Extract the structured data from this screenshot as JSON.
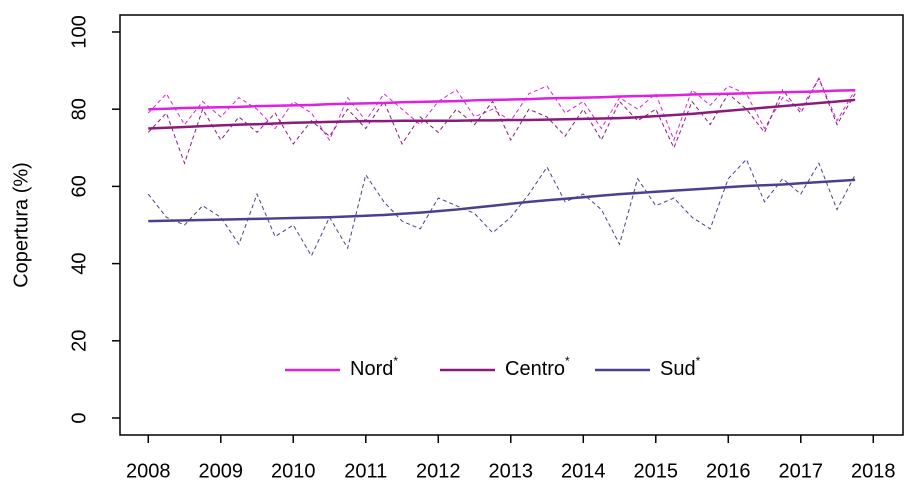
{
  "chart_data": {
    "type": "line",
    "y_label": "Copertura (%)",
    "xlim": [
      2007.61,
      2018.41
    ],
    "ylim": [
      -4.4,
      104.4
    ],
    "xticks": [
      2008,
      2009,
      2010,
      2011,
      2012,
      2013,
      2014,
      2015,
      2016,
      2017,
      2018
    ],
    "yticks": [
      0,
      20,
      40,
      60,
      80,
      100
    ],
    "grid": false,
    "x": [
      2008,
      2008.25,
      2008.5,
      2008.75,
      2009,
      2009.25,
      2009.5,
      2009.75,
      2010,
      2010.25,
      2010.5,
      2010.75,
      2011,
      2011.25,
      2011.5,
      2011.75,
      2012,
      2012.25,
      2012.5,
      2012.75,
      2013,
      2013.25,
      2013.5,
      2013.75,
      2014,
      2014.25,
      2014.5,
      2014.75,
      2015,
      2015.25,
      2015.5,
      2015.75,
      2016,
      2016.25,
      2016.5,
      2016.75,
      2017,
      2017.25,
      2017.5,
      2017.75
    ],
    "series": [
      {
        "name": "Nord",
        "note": "*",
        "color": "#e020e0",
        "values": [
          80.0,
          80.1,
          80.3,
          80.4,
          80.5,
          80.6,
          80.8,
          80.9,
          81.0,
          81.1,
          81.3,
          81.4,
          81.5,
          81.6,
          81.8,
          81.9,
          82.0,
          82.1,
          82.3,
          82.4,
          82.5,
          82.6,
          82.8,
          82.9,
          83.0,
          83.1,
          83.3,
          83.4,
          83.5,
          83.6,
          83.8,
          83.9,
          84.0,
          84.1,
          84.3,
          84.4,
          84.5,
          84.6,
          84.8,
          84.9
        ],
        "observed": [
          79,
          84,
          76,
          82,
          78,
          83,
          80,
          75,
          82,
          79,
          72,
          83,
          77,
          84,
          80,
          76,
          82,
          85,
          78,
          80,
          77,
          84,
          86,
          79,
          82,
          75,
          83,
          80,
          84,
          72,
          85,
          81,
          86,
          84,
          75,
          83,
          80,
          88,
          77,
          85
        ]
      },
      {
        "name": "Centro",
        "note": "*",
        "color": "#8b1a7a",
        "values": [
          75.0,
          75.2,
          75.4,
          75.6,
          75.8,
          76.0,
          76.1,
          76.3,
          76.5,
          76.6,
          76.7,
          76.8,
          76.9,
          76.9,
          77.0,
          77.0,
          77.0,
          77.0,
          77.1,
          77.1,
          77.2,
          77.2,
          77.3,
          77.4,
          77.5,
          77.6,
          77.7,
          77.9,
          78.2,
          78.5,
          78.8,
          79.2,
          79.6,
          80.0,
          80.4,
          80.8,
          81.2,
          81.6,
          82.0,
          82.4
        ],
        "observed": [
          74,
          79,
          66,
          80,
          72,
          78,
          74,
          79,
          71,
          77,
          73,
          80,
          75,
          82,
          71,
          78,
          74,
          80,
          76,
          82,
          72,
          80,
          78,
          73,
          80,
          72,
          82,
          77,
          80,
          70,
          82,
          76,
          84,
          80,
          74,
          85,
          79,
          88,
          76,
          84
        ]
      },
      {
        "name": "Sud",
        "note": "*",
        "color": "#4b3f8f",
        "values": [
          51.0,
          51.1,
          51.2,
          51.3,
          51.4,
          51.5,
          51.6,
          51.7,
          51.8,
          51.9,
          52.0,
          52.2,
          52.4,
          52.6,
          52.9,
          53.2,
          53.6,
          54.0,
          54.5,
          55.0,
          55.5,
          56.0,
          56.4,
          56.8,
          57.2,
          57.6,
          58.0,
          58.3,
          58.6,
          58.9,
          59.2,
          59.5,
          59.8,
          60.1,
          60.3,
          60.5,
          60.8,
          61.1,
          61.4,
          61.7
        ],
        "observed": [
          58,
          52,
          50,
          55,
          52,
          45,
          58,
          47,
          50,
          42,
          52,
          44,
          63,
          56,
          51,
          49,
          57,
          55,
          53,
          48,
          52,
          58,
          65,
          56,
          58,
          54,
          45,
          62,
          55,
          57,
          52,
          49,
          62,
          67,
          56,
          62,
          58,
          66,
          54,
          63
        ]
      }
    ]
  }
}
